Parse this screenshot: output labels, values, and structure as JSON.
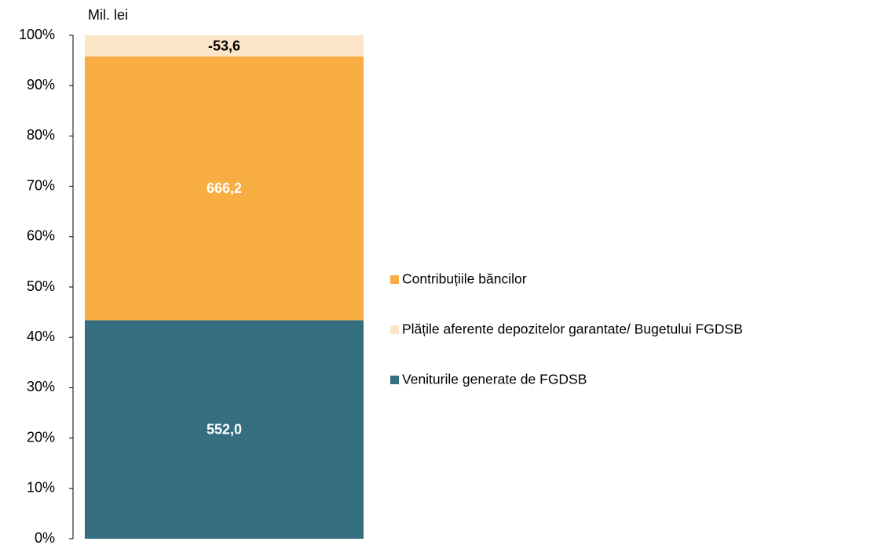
{
  "chart_data": {
    "type": "bar",
    "stacked": "percent",
    "y_unit_label": "Mil. lei",
    "categories": [
      null
    ],
    "series": [
      {
        "name": "Contribuțiile băncilor",
        "color": "#f8ad42",
        "values": [
          666.2
        ],
        "value_labels": [
          "666,2"
        ],
        "label_color": "#ffffff"
      },
      {
        "name": "Plățile aferente depozitelor garantate/ Bugetului FGDSB",
        "color": "#fde6c8",
        "values": [
          -53.6
        ],
        "value_labels": [
          "-53,6"
        ],
        "label_color": "#000000"
      },
      {
        "name": "Veniturile generate de FGDSB",
        "color": "#356e7f",
        "values": [
          552.0
        ],
        "value_labels": [
          "552,0"
        ],
        "label_color": "#ffffff"
      }
    ],
    "ylim": [
      0,
      100
    ],
    "yticks": [
      {
        "value": 0,
        "label": "0%"
      },
      {
        "value": 10,
        "label": "10%"
      },
      {
        "value": 20,
        "label": "20%"
      },
      {
        "value": 30,
        "label": "30%"
      },
      {
        "value": 40,
        "label": "40%"
      },
      {
        "value": 50,
        "label": "50%"
      },
      {
        "value": 60,
        "label": "60%"
      },
      {
        "value": 70,
        "label": "70%"
      },
      {
        "value": 80,
        "label": "80%"
      },
      {
        "value": 90,
        "label": "90%"
      },
      {
        "value": 100,
        "label": "100%"
      }
    ],
    "legend": "right"
  }
}
